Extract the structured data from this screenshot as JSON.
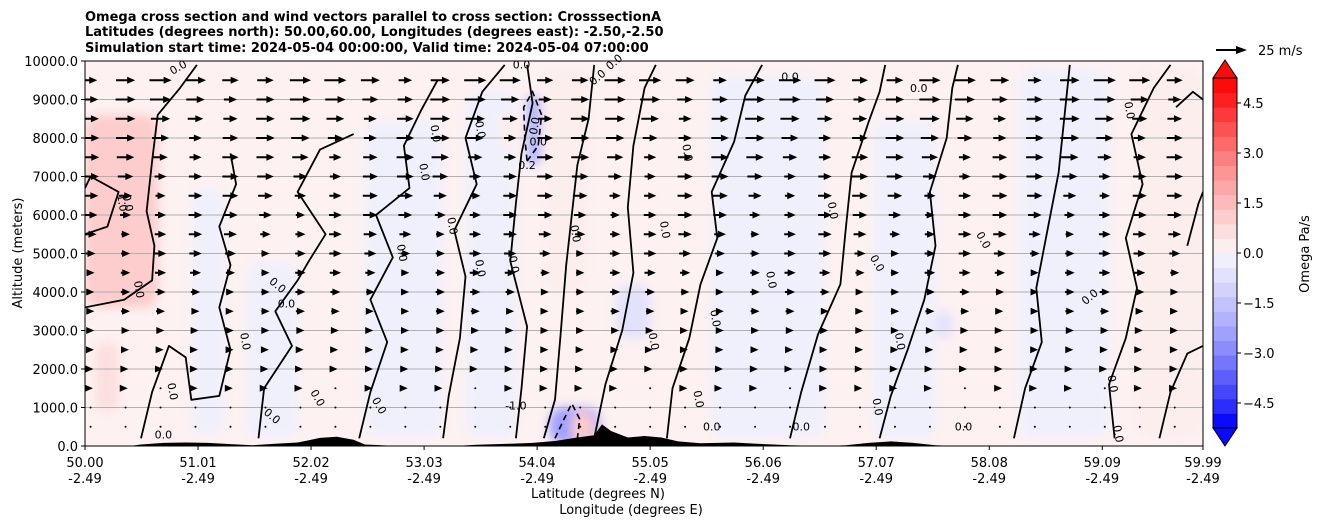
{
  "chart_data": {
    "type": "contour",
    "title": [
      "Omega cross section and wind vectors parallel to cross section: CrosssectionA",
      "Latitudes (degrees north): 50.00,60.00, Longitudes (degrees east): -2.50,-2.50",
      "Simulation start time: 2024-05-04 00:00:00, Valid time: 2024-05-04 07:00:00"
    ],
    "xlabel": "Latitude (degrees N)",
    "xlabel2": "Longitude (degrees E)",
    "ylabel": "Altitude (meters)",
    "xlim": [
      50.0,
      59.99
    ],
    "ylim": [
      0,
      10000
    ],
    "grid": "horizontal",
    "x_ticks": [
      {
        "lat": "50.00",
        "lon": "-2.49"
      },
      {
        "lat": "51.01",
        "lon": "-2.49"
      },
      {
        "lat": "52.02",
        "lon": "-2.49"
      },
      {
        "lat": "53.03",
        "lon": "-2.49"
      },
      {
        "lat": "54.04",
        "lon": "-2.49"
      },
      {
        "lat": "55.05",
        "lon": "-2.49"
      },
      {
        "lat": "56.06",
        "lon": "-2.49"
      },
      {
        "lat": "57.07",
        "lon": "-2.49"
      },
      {
        "lat": "58.08",
        "lon": "-2.49"
      },
      {
        "lat": "59.09",
        "lon": "-2.49"
      },
      {
        "lat": "59.99",
        "lon": "-2.49"
      }
    ],
    "y_ticks": [
      "0.0",
      "1000.0",
      "2000.0",
      "3000.0",
      "4000.0",
      "5000.0",
      "6000.0",
      "7000.0",
      "8000.0",
      "9000.0",
      "10000.0"
    ],
    "colorbar": {
      "label": "Omega Pa/s",
      "range": [
        -5.25,
        5.25
      ],
      "extend": "both",
      "ticks": [
        "4.5",
        "3.0",
        "1.5",
        "0.0",
        "−1.5",
        "−3.0",
        "−4.5"
      ],
      "colors_positive": [
        "#fdeeee",
        "#fddede",
        "#fdcccc",
        "#fdbaba",
        "#fda8a8",
        "#fd9595",
        "#fd8080",
        "#fd6a6a",
        "#fd5252",
        "#fd3a3a",
        "#fd2020",
        "#ff0a0a"
      ],
      "colors_negative": [
        "#f0f0fd",
        "#e2e2fd",
        "#d2d2fd",
        "#c2c2fd",
        "#b2b2fd",
        "#a0a0fd",
        "#8c8cfd",
        "#7676fd",
        "#5e5efd",
        "#4646fd",
        "#2c2cfd",
        "#0a0aff"
      ]
    },
    "wind_key": {
      "label": "25 m/s",
      "value": 25
    },
    "contour_labels": [
      "0.0",
      "1.0",
      "0.2",
      "-1.0"
    ],
    "omega_regions": [
      {
        "sign": "positive",
        "lat": [
          50.0,
          50.65
        ],
        "alt": [
          3600,
          8600
        ],
        "omega": 0.9
      },
      {
        "sign": "positive",
        "lat": [
          50.05,
          50.45
        ],
        "alt": [
          5400,
          7000
        ],
        "omega": 1.2
      },
      {
        "sign": "positive",
        "lat": [
          50.1,
          50.3
        ],
        "alt": [
          900,
          2700
        ],
        "omega": 0.5
      },
      {
        "sign": "negative",
        "lat": [
          50.95,
          51.25
        ],
        "alt": [
          300,
          6700
        ],
        "omega": -0.2
      },
      {
        "sign": "negative",
        "lat": [
          51.45,
          51.9
        ],
        "alt": [
          200,
          4800
        ],
        "omega": -0.15
      },
      {
        "sign": "negative",
        "lat": [
          52.5,
          53.2
        ],
        "alt": [
          200,
          8400
        ],
        "omega": -0.2
      },
      {
        "sign": "negative",
        "lat": [
          53.4,
          53.85
        ],
        "alt": [
          200,
          9200
        ],
        "omega": -0.4
      },
      {
        "sign": "negative",
        "lat": [
          53.95,
          54.07
        ],
        "alt": [
          7300,
          9100
        ],
        "omega": -2.0
      },
      {
        "sign": "positive",
        "lat": [
          53.7,
          53.9
        ],
        "alt": [
          7700,
          8700
        ],
        "omega": 0.4
      },
      {
        "sign": "positive",
        "lat": [
          54.1,
          54.5
        ],
        "alt": [
          4000,
          9800
        ],
        "omega": 0.15
      },
      {
        "sign": "negative",
        "lat": [
          54.15,
          54.6
        ],
        "alt": [
          50,
          1000
        ],
        "omega": -2.5
      },
      {
        "sign": "positive",
        "lat": [
          54.35,
          54.55
        ],
        "alt": [
          50,
          900
        ],
        "omega": 1.2
      },
      {
        "sign": "negative",
        "lat": [
          54.75,
          55.05
        ],
        "alt": [
          2800,
          4200
        ],
        "omega": -0.7
      },
      {
        "sign": "negative",
        "lat": [
          55.6,
          56.6
        ],
        "alt": [
          200,
          9600
        ],
        "omega": -0.2
      },
      {
        "sign": "negative",
        "lat": [
          57.05,
          57.6
        ],
        "alt": [
          200,
          8400
        ],
        "omega": -0.25
      },
      {
        "sign": "negative",
        "lat": [
          57.6,
          57.75
        ],
        "alt": [
          2800,
          3500
        ],
        "omega": -0.8
      },
      {
        "sign": "negative",
        "lat": [
          58.35,
          59.15
        ],
        "alt": [
          200,
          9800
        ],
        "omega": -0.2
      },
      {
        "sign": "positive",
        "lat": [
          59.4,
          59.99
        ],
        "alt": [
          200,
          9800
        ],
        "omega": 0.1
      }
    ],
    "zero_contours": [
      [
        [
          50.0,
          3600
        ],
        [
          50.35,
          3800
        ],
        [
          50.6,
          4300
        ],
        [
          50.62,
          5200
        ],
        [
          50.55,
          6100
        ],
        [
          50.6,
          7400
        ],
        [
          50.65,
          8600
        ],
        [
          50.85,
          9300
        ],
        [
          51.0,
          9900
        ]
      ],
      [
        [
          50.0,
          5500
        ],
        [
          50.2,
          5700
        ],
        [
          50.3,
          6600
        ],
        [
          50.05,
          7000
        ],
        [
          50.0,
          6700
        ]
      ],
      [
        [
          50.5,
          200
        ],
        [
          50.6,
          1400
        ],
        [
          50.75,
          2600
        ],
        [
          50.9,
          2300
        ],
        [
          50.95,
          1200
        ],
        [
          51.2,
          1300
        ],
        [
          51.3,
          2500
        ],
        [
          51.2,
          3600
        ],
        [
          51.3,
          4700
        ],
        [
          51.2,
          5700
        ],
        [
          51.35,
          6800
        ],
        [
          51.3,
          7600
        ]
      ],
      [
        [
          51.55,
          200
        ],
        [
          51.6,
          1500
        ],
        [
          51.85,
          2600
        ],
        [
          51.7,
          3500
        ],
        [
          51.9,
          4300
        ],
        [
          52.0,
          4800
        ],
        [
          52.15,
          5500
        ],
        [
          51.9,
          6600
        ],
        [
          52.1,
          7700
        ],
        [
          52.4,
          8100
        ]
      ],
      [
        [
          52.45,
          200
        ],
        [
          52.55,
          1400
        ],
        [
          52.7,
          2700
        ],
        [
          52.55,
          3800
        ],
        [
          52.75,
          4900
        ],
        [
          52.6,
          6000
        ],
        [
          52.9,
          6700
        ],
        [
          52.85,
          7800
        ],
        [
          53.0,
          8700
        ],
        [
          53.15,
          9500
        ]
      ],
      [
        [
          53.2,
          200
        ],
        [
          53.25,
          1300
        ],
        [
          53.35,
          2800
        ],
        [
          53.4,
          4400
        ],
        [
          53.3,
          5600
        ],
        [
          53.5,
          6800
        ],
        [
          53.4,
          8000
        ],
        [
          53.55,
          9200
        ],
        [
          53.75,
          9900
        ]
      ],
      [
        [
          53.85,
          200
        ],
        [
          53.9,
          1500
        ],
        [
          53.95,
          3100
        ],
        [
          53.8,
          4800
        ],
        [
          53.85,
          6300
        ],
        [
          53.9,
          7600
        ],
        [
          54.0,
          8900
        ],
        [
          53.95,
          9900
        ]
      ],
      [
        [
          54.1,
          200
        ],
        [
          54.2,
          1200
        ],
        [
          54.25,
          2900
        ],
        [
          54.3,
          4700
        ],
        [
          54.35,
          6000
        ],
        [
          54.4,
          7300
        ],
        [
          54.5,
          8500
        ],
        [
          54.55,
          9900
        ]
      ],
      [
        [
          54.55,
          200
        ],
        [
          54.65,
          1600
        ],
        [
          54.8,
          3000
        ],
        [
          54.9,
          4500
        ],
        [
          54.85,
          6200
        ],
        [
          54.9,
          7800
        ],
        [
          55.0,
          9300
        ],
        [
          55.1,
          9900
        ]
      ],
      [
        [
          55.2,
          200
        ],
        [
          55.25,
          1500
        ],
        [
          55.4,
          2800
        ],
        [
          55.5,
          4200
        ],
        [
          55.65,
          5400
        ],
        [
          55.6,
          6600
        ],
        [
          55.8,
          7900
        ],
        [
          55.9,
          9100
        ],
        [
          56.05,
          9900
        ]
      ],
      [
        [
          56.3,
          200
        ],
        [
          56.4,
          1400
        ],
        [
          56.55,
          2900
        ],
        [
          56.75,
          4200
        ],
        [
          56.8,
          5700
        ],
        [
          56.85,
          7100
        ],
        [
          57.0,
          8400
        ],
        [
          57.1,
          9200
        ],
        [
          57.15,
          9900
        ]
      ],
      [
        [
          57.1,
          200
        ],
        [
          57.2,
          1300
        ],
        [
          57.35,
          2500
        ],
        [
          57.5,
          3800
        ],
        [
          57.6,
          5200
        ],
        [
          57.55,
          6600
        ],
        [
          57.7,
          8000
        ],
        [
          57.75,
          9300
        ],
        [
          57.8,
          9900
        ]
      ],
      [
        [
          58.3,
          200
        ],
        [
          58.4,
          1500
        ],
        [
          58.55,
          2700
        ],
        [
          58.5,
          4100
        ],
        [
          58.6,
          5600
        ],
        [
          58.7,
          7100
        ],
        [
          58.75,
          8500
        ],
        [
          58.8,
          9900
        ]
      ],
      [
        [
          59.2,
          200
        ],
        [
          59.15,
          1600
        ],
        [
          59.3,
          2800
        ],
        [
          59.4,
          4100
        ],
        [
          59.3,
          5400
        ],
        [
          59.45,
          6800
        ],
        [
          59.35,
          8100
        ],
        [
          59.55,
          9300
        ],
        [
          59.7,
          9900
        ]
      ],
      [
        [
          59.6,
          200
        ],
        [
          59.7,
          1400
        ],
        [
          59.85,
          2400
        ],
        [
          59.99,
          2600
        ]
      ],
      [
        [
          59.85,
          5200
        ],
        [
          59.95,
          6300
        ],
        [
          59.99,
          6600
        ]
      ],
      [
        [
          59.75,
          8800
        ],
        [
          59.9,
          9200
        ],
        [
          59.99,
          9000
        ]
      ]
    ],
    "dashed_contours": [
      [
        [
          53.95,
          7400
        ],
        [
          54.05,
          7800
        ],
        [
          54.08,
          8600
        ],
        [
          54.0,
          9200
        ],
        [
          53.92,
          8800
        ],
        [
          53.93,
          8000
        ],
        [
          53.95,
          7400
        ]
      ],
      [
        [
          54.2,
          200
        ],
        [
          54.28,
          700
        ],
        [
          54.35,
          1100
        ],
        [
          54.42,
          700
        ],
        [
          54.4,
          200
        ]
      ]
    ],
    "terrain": [
      [
        50.0,
        0
      ],
      [
        50.4,
        0
      ],
      [
        50.5,
        40
      ],
      [
        50.7,
        80
      ],
      [
        50.9,
        90
      ],
      [
        51.1,
        80
      ],
      [
        51.3,
        50
      ],
      [
        51.5,
        20
      ],
      [
        51.7,
        60
      ],
      [
        51.9,
        90
      ],
      [
        52.0,
        150
      ],
      [
        52.1,
        210
      ],
      [
        52.25,
        240
      ],
      [
        52.4,
        160
      ],
      [
        52.5,
        40
      ],
      [
        52.8,
        0
      ],
      [
        53.3,
        0
      ],
      [
        53.5,
        30
      ],
      [
        53.8,
        60
      ],
      [
        54.0,
        80
      ],
      [
        54.2,
        130
      ],
      [
        54.4,
        220
      ],
      [
        54.55,
        280
      ],
      [
        54.62,
        560
      ],
      [
        54.7,
        390
      ],
      [
        54.85,
        220
      ],
      [
        55.0,
        260
      ],
      [
        55.15,
        220
      ],
      [
        55.3,
        120
      ],
      [
        55.5,
        70
      ],
      [
        55.8,
        90
      ],
      [
        56.0,
        60
      ],
      [
        56.3,
        20
      ],
      [
        56.6,
        0
      ],
      [
        56.8,
        20
      ],
      [
        57.0,
        80
      ],
      [
        57.2,
        120
      ],
      [
        57.4,
        80
      ],
      [
        57.6,
        20
      ],
      [
        57.8,
        0
      ],
      [
        59.99,
        0
      ]
    ],
    "wind_rows": [
      9500,
      9000,
      8500,
      8000,
      7500,
      7000,
      6500,
      6000,
      5500,
      5000,
      4500,
      4000,
      3500,
      3000,
      2500,
      2000,
      1500,
      1000,
      500
    ],
    "wind_speed_range_ms": [
      2,
      18
    ]
  }
}
